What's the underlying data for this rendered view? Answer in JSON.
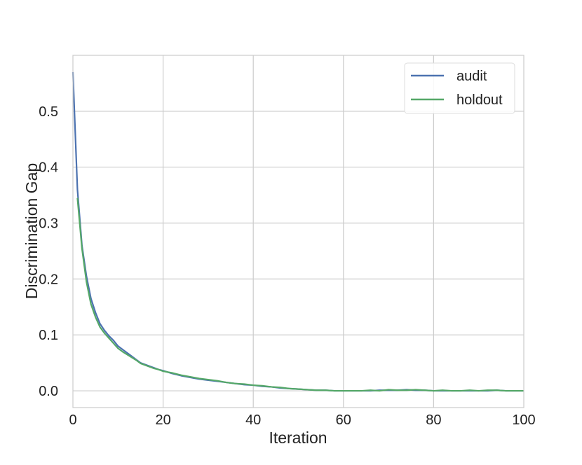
{
  "chart_data": {
    "type": "line",
    "xlabel": "Iteration",
    "ylabel": "Discrimination Gap",
    "xlim": [
      0,
      100
    ],
    "ylim": [
      -0.03,
      0.6
    ],
    "xticks": [
      0,
      20,
      40,
      60,
      80,
      100
    ],
    "xtick_labels": [
      "0",
      "20",
      "40",
      "60",
      "80",
      "100"
    ],
    "yticks": [
      0.0,
      0.1,
      0.2,
      0.3,
      0.4,
      0.5
    ],
    "ytick_labels": [
      "0.0",
      "0.1",
      "0.2",
      "0.3",
      "0.4",
      "0.5"
    ],
    "grid": true,
    "legend_position": "top-right",
    "x": [
      0,
      1,
      2,
      3,
      4,
      5,
      6,
      7,
      8,
      9,
      10,
      11,
      12,
      13,
      14,
      15,
      16,
      17,
      18,
      19,
      20,
      22,
      24,
      26,
      28,
      30,
      32,
      34,
      36,
      38,
      40,
      42,
      44,
      46,
      48,
      50,
      52,
      54,
      56,
      58,
      60,
      62,
      64,
      66,
      68,
      70,
      72,
      74,
      76,
      78,
      80,
      82,
      84,
      86,
      88,
      90,
      92,
      94,
      96,
      98,
      100
    ],
    "series": [
      {
        "name": "audit",
        "color": "#4c72b0",
        "values": [
          0.57,
          0.36,
          0.26,
          0.205,
          0.165,
          0.14,
          0.12,
          0.108,
          0.098,
          0.09,
          0.08,
          0.074,
          0.068,
          0.062,
          0.056,
          0.05,
          0.047,
          0.044,
          0.041,
          0.038,
          0.036,
          0.031,
          0.027,
          0.024,
          0.021,
          0.019,
          0.017,
          0.015,
          0.013,
          0.011,
          0.01,
          0.008,
          0.007,
          0.005,
          0.004,
          0.003,
          0.002,
          0.001,
          0.001,
          0.0,
          0.0,
          0.0,
          0.0,
          0.0,
          0.001,
          0.001,
          0.001,
          0.002,
          0.001,
          0.001,
          0.0,
          0.0,
          0.0,
          0.0,
          0.0,
          0.0,
          0.0,
          0.001,
          0.0,
          0.0,
          0.0
        ]
      },
      {
        "name": "holdout",
        "color": "#55a868",
        "values": [
          null,
          0.345,
          0.255,
          0.195,
          0.155,
          0.132,
          0.114,
          0.103,
          0.094,
          0.085,
          0.076,
          0.07,
          0.065,
          0.06,
          0.055,
          0.049,
          0.046,
          0.043,
          0.04,
          0.038,
          0.035,
          0.032,
          0.028,
          0.025,
          0.022,
          0.02,
          0.018,
          0.015,
          0.013,
          0.012,
          0.01,
          0.009,
          0.007,
          0.006,
          0.004,
          0.003,
          0.002,
          0.001,
          0.001,
          0.0,
          0.0,
          0.0,
          0.0,
          0.001,
          0.0,
          0.002,
          0.001,
          0.001,
          0.002,
          0.001,
          0.0,
          0.001,
          0.0,
          0.0,
          0.001,
          0.0,
          0.001,
          0.001,
          0.0,
          0.0,
          0.0
        ]
      }
    ]
  }
}
